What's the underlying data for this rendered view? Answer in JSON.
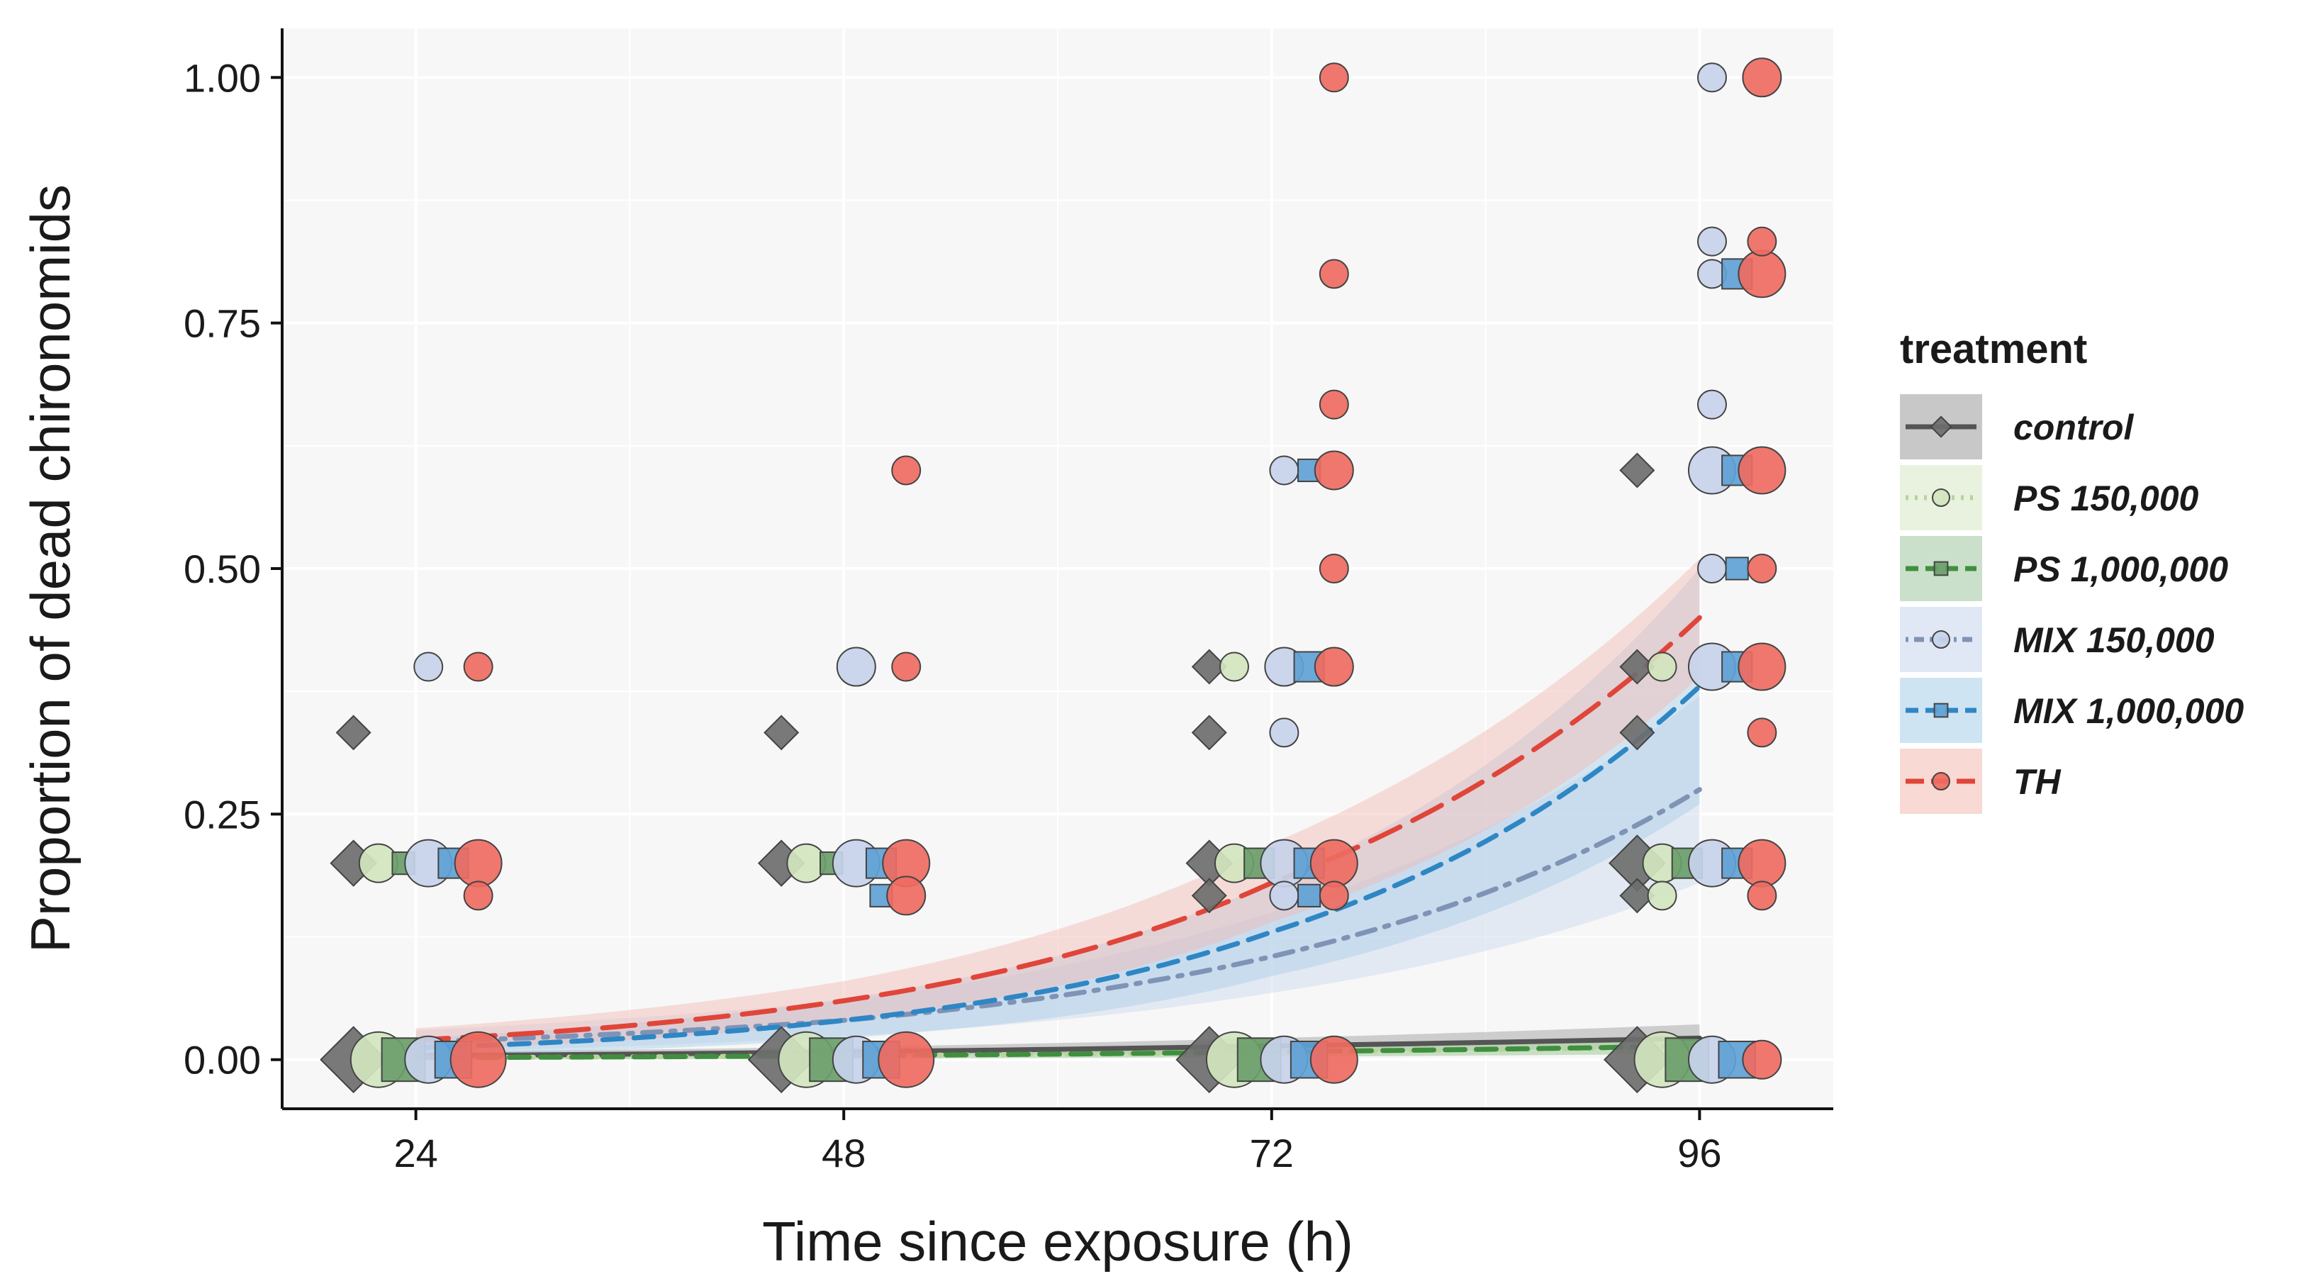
{
  "chart_data": {
    "type": "scatter",
    "xlabel": "Time since exposure (h)",
    "ylabel": "Proportion of dead chironomids",
    "x_ticks": [
      24,
      48,
      72,
      96
    ],
    "x_tick_labels": [
      "24",
      "48",
      "72",
      "96"
    ],
    "y_ticks": [
      0,
      0.25,
      0.5,
      0.75,
      1.0
    ],
    "y_tick_labels": [
      "0.00",
      "0.25",
      "0.50",
      "0.75",
      "1.00"
    ],
    "xlim": [
      16.5,
      103.5
    ],
    "ylim": [
      -0.05,
      1.05
    ],
    "grid": true,
    "legend": {
      "title": "treatment",
      "position": "right",
      "entries": [
        "control",
        "PS 150,000",
        "PS 1,000,000",
        "MIX 150,000",
        "MIX 1,000,000",
        "TH"
      ]
    },
    "series": [
      {
        "name": "control",
        "color": "#555555",
        "point_color": "#6e6e6e",
        "band_color": "#9a9a9a",
        "shape": "diamond",
        "line": "solid",
        "dodge": -3.5,
        "fit": {
          "x": [
            24,
            48,
            72,
            96
          ],
          "y": [
            0.004,
            0.008,
            0.014,
            0.022
          ],
          "lower": [
            0.001,
            0.004,
            0.008,
            0.012
          ],
          "upper": [
            0.008,
            0.013,
            0.022,
            0.036
          ]
        },
        "points": [
          {
            "x": 24,
            "y": 0.0,
            "size": 5
          },
          {
            "x": 24,
            "y": 0.2,
            "size": 3
          },
          {
            "x": 24,
            "y": 0.333,
            "size": 2
          },
          {
            "x": 48,
            "y": 0.0,
            "size": 5
          },
          {
            "x": 48,
            "y": 0.2,
            "size": 3
          },
          {
            "x": 48,
            "y": 0.333,
            "size": 2
          },
          {
            "x": 72,
            "y": 0.0,
            "size": 5
          },
          {
            "x": 72,
            "y": 0.2,
            "size": 3
          },
          {
            "x": 72,
            "y": 0.167,
            "size": 2
          },
          {
            "x": 72,
            "y": 0.333,
            "size": 2
          },
          {
            "x": 72,
            "y": 0.4,
            "size": 2
          },
          {
            "x": 96,
            "y": 0.0,
            "size": 5
          },
          {
            "x": 96,
            "y": 0.2,
            "size": 4
          },
          {
            "x": 96,
            "y": 0.167,
            "size": 2
          },
          {
            "x": 96,
            "y": 0.333,
            "size": 2
          },
          {
            "x": 96,
            "y": 0.4,
            "size": 2
          },
          {
            "x": 96,
            "y": 0.6,
            "size": 2
          }
        ]
      },
      {
        "name": "PS 150,000",
        "color": "#b8d39e",
        "point_color": "#d3e5bf",
        "band_color": "#d7e8c4",
        "shape": "circle",
        "line": "dotted",
        "dodge": -2.1,
        "fit": {
          "x": [
            24,
            48,
            72,
            96
          ],
          "y": [
            0.002,
            0.004,
            0.008,
            0.013
          ],
          "lower": [
            0.0,
            0.001,
            0.003,
            0.006
          ],
          "upper": [
            0.005,
            0.008,
            0.013,
            0.022
          ]
        },
        "points": [
          {
            "x": 24,
            "y": 0.0,
            "size": 5
          },
          {
            "x": 24,
            "y": 0.2,
            "size": 3
          },
          {
            "x": 48,
            "y": 0.0,
            "size": 5
          },
          {
            "x": 48,
            "y": 0.2,
            "size": 3
          },
          {
            "x": 72,
            "y": 0.0,
            "size": 5
          },
          {
            "x": 72,
            "y": 0.2,
            "size": 3
          },
          {
            "x": 72,
            "y": 0.4,
            "size": 2
          },
          {
            "x": 96,
            "y": 0.0,
            "size": 5
          },
          {
            "x": 96,
            "y": 0.2,
            "size": 3
          },
          {
            "x": 96,
            "y": 0.167,
            "size": 2
          },
          {
            "x": 96,
            "y": 0.4,
            "size": 2
          }
        ]
      },
      {
        "name": "PS 1,000,000",
        "color": "#3f8f3f",
        "point_color": "#6a9e6a",
        "band_color": "#9fc79f",
        "shape": "square",
        "line": "dashed",
        "dodge": -0.7,
        "fit": {
          "x": [
            24,
            48,
            72,
            96
          ],
          "y": [
            0.002,
            0.004,
            0.008,
            0.014
          ],
          "lower": [
            0.0,
            0.001,
            0.003,
            0.006
          ],
          "upper": [
            0.005,
            0.008,
            0.013,
            0.023
          ]
        },
        "points": [
          {
            "x": 24,
            "y": 0.0,
            "size": 5
          },
          {
            "x": 24,
            "y": 0.2,
            "size": 2
          },
          {
            "x": 48,
            "y": 0.0,
            "size": 5
          },
          {
            "x": 48,
            "y": 0.2,
            "size": 2
          },
          {
            "x": 72,
            "y": 0.0,
            "size": 5
          },
          {
            "x": 72,
            "y": 0.2,
            "size": 3
          },
          {
            "x": 96,
            "y": 0.0,
            "size": 5
          },
          {
            "x": 96,
            "y": 0.2,
            "size": 3
          }
        ]
      },
      {
        "name": "MIX 150,000",
        "color": "#7f93b5",
        "point_color": "#c7d3ea",
        "band_color": "#c9d6ec",
        "shape": "circle",
        "line": "dotdash",
        "dodge": 0.7,
        "fit": {
          "x": [
            24,
            48,
            72,
            96
          ],
          "y": [
            0.018,
            0.04,
            0.105,
            0.275
          ],
          "lower": [
            0.008,
            0.024,
            0.068,
            0.18
          ],
          "upper": [
            0.03,
            0.06,
            0.15,
            0.37
          ]
        },
        "points": [
          {
            "x": 24,
            "y": 0.0,
            "size": 4
          },
          {
            "x": 24,
            "y": 0.2,
            "size": 4
          },
          {
            "x": 24,
            "y": 0.4,
            "size": 2
          },
          {
            "x": 48,
            "y": 0.0,
            "size": 4
          },
          {
            "x": 48,
            "y": 0.2,
            "size": 4
          },
          {
            "x": 48,
            "y": 0.4,
            "size": 3
          },
          {
            "x": 72,
            "y": 0.0,
            "size": 4
          },
          {
            "x": 72,
            "y": 0.2,
            "size": 4
          },
          {
            "x": 72,
            "y": 0.167,
            "size": 2
          },
          {
            "x": 72,
            "y": 0.333,
            "size": 2
          },
          {
            "x": 72,
            "y": 0.4,
            "size": 3
          },
          {
            "x": 72,
            "y": 0.6,
            "size": 2
          },
          {
            "x": 96,
            "y": 0.0,
            "size": 4
          },
          {
            "x": 96,
            "y": 0.2,
            "size": 4
          },
          {
            "x": 96,
            "y": 0.4,
            "size": 4
          },
          {
            "x": 96,
            "y": 0.5,
            "size": 2
          },
          {
            "x": 96,
            "y": 0.6,
            "size": 4
          },
          {
            "x": 96,
            "y": 0.667,
            "size": 2
          },
          {
            "x": 96,
            "y": 0.8,
            "size": 2
          },
          {
            "x": 96,
            "y": 0.833,
            "size": 2
          },
          {
            "x": 96,
            "y": 1.0,
            "size": 2
          }
        ]
      },
      {
        "name": "MIX 1,000,000",
        "color": "#2f86c4",
        "point_color": "#5fa1d5",
        "band_color": "#a7cde8",
        "shape": "square",
        "line": "dashed",
        "dodge": 2.1,
        "fit": {
          "x": [
            24,
            48,
            72,
            96
          ],
          "y": [
            0.012,
            0.04,
            0.13,
            0.38
          ],
          "lower": [
            0.005,
            0.022,
            0.085,
            0.26
          ],
          "upper": [
            0.022,
            0.062,
            0.18,
            0.5
          ]
        },
        "points": [
          {
            "x": 24,
            "y": 0.0,
            "size": 4
          },
          {
            "x": 24,
            "y": 0.2,
            "size": 3
          },
          {
            "x": 48,
            "y": 0.0,
            "size": 4
          },
          {
            "x": 48,
            "y": 0.2,
            "size": 3
          },
          {
            "x": 48,
            "y": 0.167,
            "size": 2
          },
          {
            "x": 72,
            "y": 0.0,
            "size": 4
          },
          {
            "x": 72,
            "y": 0.2,
            "size": 3
          },
          {
            "x": 72,
            "y": 0.167,
            "size": 2
          },
          {
            "x": 72,
            "y": 0.4,
            "size": 3
          },
          {
            "x": 72,
            "y": 0.6,
            "size": 2
          },
          {
            "x": 96,
            "y": 0.0,
            "size": 4
          },
          {
            "x": 96,
            "y": 0.2,
            "size": 3
          },
          {
            "x": 96,
            "y": 0.4,
            "size": 3
          },
          {
            "x": 96,
            "y": 0.5,
            "size": 2
          },
          {
            "x": 96,
            "y": 0.6,
            "size": 3
          },
          {
            "x": 96,
            "y": 0.8,
            "size": 3
          }
        ]
      },
      {
        "name": "TH",
        "color": "#e0453a",
        "point_color": "#ee6b61",
        "band_color": "#f2b9b1",
        "shape": "circle",
        "line": "longdash",
        "dodge": 3.5,
        "fit": {
          "x": [
            24,
            48,
            72,
            96
          ],
          "y": [
            0.02,
            0.06,
            0.18,
            0.45
          ],
          "lower": [
            0.01,
            0.04,
            0.14,
            0.39
          ],
          "upper": [
            0.032,
            0.08,
            0.22,
            0.51
          ]
        },
        "points": [
          {
            "x": 24,
            "y": 0.0,
            "size": 5
          },
          {
            "x": 24,
            "y": 0.2,
            "size": 4
          },
          {
            "x": 24,
            "y": 0.167,
            "size": 2
          },
          {
            "x": 24,
            "y": 0.4,
            "size": 2
          },
          {
            "x": 48,
            "y": 0.0,
            "size": 5
          },
          {
            "x": 48,
            "y": 0.2,
            "size": 4
          },
          {
            "x": 48,
            "y": 0.167,
            "size": 3
          },
          {
            "x": 48,
            "y": 0.4,
            "size": 2
          },
          {
            "x": 48,
            "y": 0.6,
            "size": 2
          },
          {
            "x": 72,
            "y": 0.0,
            "size": 4
          },
          {
            "x": 72,
            "y": 0.2,
            "size": 4
          },
          {
            "x": 72,
            "y": 0.167,
            "size": 2
          },
          {
            "x": 72,
            "y": 0.4,
            "size": 3
          },
          {
            "x": 72,
            "y": 0.5,
            "size": 2
          },
          {
            "x": 72,
            "y": 0.6,
            "size": 3
          },
          {
            "x": 72,
            "y": 0.667,
            "size": 2
          },
          {
            "x": 72,
            "y": 0.8,
            "size": 2
          },
          {
            "x": 72,
            "y": 1.0,
            "size": 2
          },
          {
            "x": 96,
            "y": 0.0,
            "size": 3
          },
          {
            "x": 96,
            "y": 0.2,
            "size": 4
          },
          {
            "x": 96,
            "y": 0.167,
            "size": 2
          },
          {
            "x": 96,
            "y": 0.333,
            "size": 2
          },
          {
            "x": 96,
            "y": 0.4,
            "size": 4
          },
          {
            "x": 96,
            "y": 0.5,
            "size": 2
          },
          {
            "x": 96,
            "y": 0.6,
            "size": 4
          },
          {
            "x": 96,
            "y": 0.8,
            "size": 4
          },
          {
            "x": 96,
            "y": 0.833,
            "size": 2
          },
          {
            "x": 96,
            "y": 1.0,
            "size": 3
          }
        ]
      }
    ]
  }
}
